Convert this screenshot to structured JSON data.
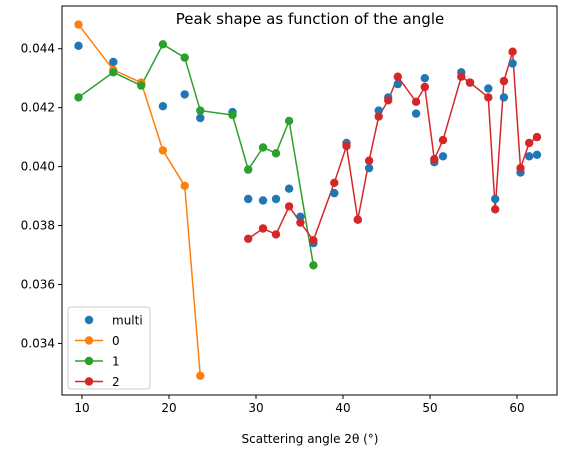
{
  "chart_data": {
    "type": "scatter",
    "title": "Peak shape as function of the angle",
    "xlabel": "Scattering angle 2θ (°)",
    "ylabel": "",
    "xlim": [
      7.7,
      64.6
    ],
    "ylim": [
      0.03225,
      0.04545
    ],
    "xticks": [
      10,
      20,
      30,
      40,
      50,
      60
    ],
    "yticks": [
      0.034,
      0.036,
      0.038,
      0.04,
      0.042,
      0.044
    ],
    "ytick_labels": [
      "0.034",
      "0.036",
      "0.038",
      "0.040",
      "0.042",
      "0.044"
    ],
    "legend_position": "lower-left",
    "series": [
      {
        "name": "multi",
        "style": "markers",
        "color": "#1f77b4",
        "x": [
          9.6,
          13.6,
          16.8,
          19.3,
          21.8,
          23.6,
          27.3,
          29.1,
          30.8,
          32.3,
          33.8,
          35.1,
          36.6,
          39.0,
          40.4,
          41.7,
          43.0,
          44.1,
          45.2,
          46.3,
          48.4,
          49.4,
          50.5,
          51.5,
          53.6,
          54.6,
          56.7,
          57.5,
          58.5,
          59.5,
          60.4,
          61.4,
          62.3
        ],
        "y": [
          0.0441,
          0.04355,
          0.0428,
          0.04205,
          0.04245,
          0.04165,
          0.04185,
          0.0389,
          0.03885,
          0.0389,
          0.03925,
          0.0383,
          0.0374,
          0.0391,
          0.0408,
          0.0382,
          0.03995,
          0.0419,
          0.04235,
          0.0428,
          0.0418,
          0.043,
          0.04015,
          0.04035,
          0.0432,
          0.04285,
          0.04265,
          0.0389,
          0.04235,
          0.0435,
          0.0398,
          0.04035,
          0.0404
        ]
      },
      {
        "name": "0",
        "style": "line-markers",
        "color": "#ff7f0e",
        "x": [
          9.6,
          13.6,
          16.8,
          19.3,
          21.8,
          23.6
        ],
        "y": [
          0.04482,
          0.04328,
          0.04285,
          0.04055,
          0.03935,
          0.0329
        ]
      },
      {
        "name": "1",
        "style": "line-markers",
        "color": "#2ca02c",
        "x": [
          9.6,
          13.6,
          16.8,
          19.3,
          21.8,
          23.6,
          27.3,
          29.1,
          30.8,
          32.3,
          33.8,
          36.6
        ],
        "y": [
          0.04235,
          0.0432,
          0.04275,
          0.04415,
          0.0437,
          0.0419,
          0.04175,
          0.0399,
          0.04065,
          0.04045,
          0.04155,
          0.03665
        ]
      },
      {
        "name": "2",
        "style": "line-markers",
        "color": "#d62728",
        "x": [
          29.1,
          30.8,
          32.3,
          33.8,
          35.1,
          36.6,
          39.0,
          40.4,
          41.7,
          43.0,
          44.1,
          45.2,
          46.3,
          48.4,
          49.4,
          50.5,
          51.5,
          53.6,
          54.6,
          56.7,
          57.5,
          58.5,
          59.5,
          60.4,
          61.4,
          62.3
        ],
        "y": [
          0.03755,
          0.0379,
          0.0377,
          0.03865,
          0.0381,
          0.0375,
          0.03945,
          0.0407,
          0.0382,
          0.0402,
          0.0417,
          0.04225,
          0.04305,
          0.0422,
          0.0427,
          0.04025,
          0.0409,
          0.04305,
          0.04285,
          0.04235,
          0.03855,
          0.0429,
          0.0439,
          0.03995,
          0.0408,
          0.041
        ]
      }
    ]
  }
}
